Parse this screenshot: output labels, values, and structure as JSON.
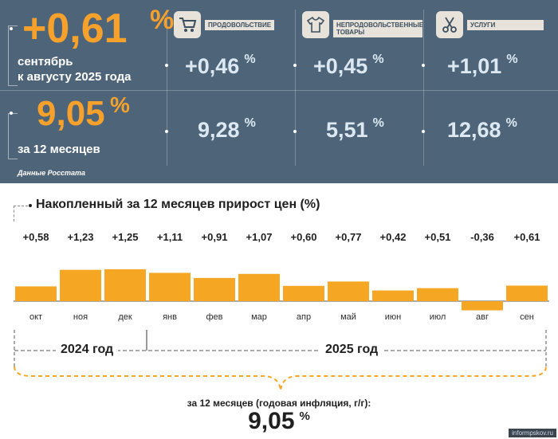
{
  "monthly": {
    "value": "+0,61",
    "unit": "%",
    "label_line1": "сентябрь",
    "label_line2": "к августу 2025 года"
  },
  "annual": {
    "value": "9,05",
    "unit": "%",
    "label": "за 12 месяцев"
  },
  "categories": [
    {
      "name": "ПРОДОВОЛЬСТВИЕ",
      "icon": "shopping-cart-icon",
      "monthly": "+0,46",
      "annual": "9,28",
      "unit": "%"
    },
    {
      "name": "НЕПРОДОВОЛЬСТВЕННЫЕ ТОВАРЫ",
      "icon": "clothing-icon",
      "monthly": "+0,45",
      "annual": "5,51",
      "unit": "%"
    },
    {
      "name": "УСЛУГИ",
      "icon": "scissors-icon",
      "monthly": "+1,01",
      "annual": "12,68",
      "unit": "%"
    }
  ],
  "source": "Данные Росстата",
  "chart_data": {
    "type": "bar",
    "title": "Накопленный за 12 месяцев прирост цен (%)",
    "categories": [
      "окт",
      "ноя",
      "дек",
      "янв",
      "фев",
      "мар",
      "апр",
      "май",
      "июн",
      "июл",
      "авг",
      "сен"
    ],
    "values": [
      0.58,
      1.23,
      1.25,
      1.11,
      0.91,
      1.07,
      0.6,
      0.77,
      0.42,
      0.51,
      -0.36,
      0.61
    ],
    "value_labels": [
      "+0,58",
      "+1,23",
      "+1,25",
      "+1,11",
      "+0,91",
      "+1,07",
      "+0,60",
      "+0,77",
      "+0,42",
      "+0,51",
      "-0,36",
      "+0,61"
    ],
    "bar_color": "#f5a623",
    "ylim": [
      -0.36,
      1.25
    ],
    "year_groups": [
      {
        "label": "2024 год",
        "months": [
          "окт",
          "ноя",
          "дек"
        ]
      },
      {
        "label": "2025 год",
        "months": [
          "янв",
          "фев",
          "мар",
          "апр",
          "май",
          "июн",
          "июл",
          "авг",
          "сен"
        ]
      }
    ]
  },
  "footer": {
    "label": "за 12 месяцев (годовая инфляция, г/г):",
    "value": "9,05",
    "unit": "%"
  },
  "watermark": "informpskov.ru",
  "colors": {
    "panel_background": "#4e6478",
    "accent_orange": "#f5a12c",
    "value_light_blue": "#dce9f3"
  }
}
